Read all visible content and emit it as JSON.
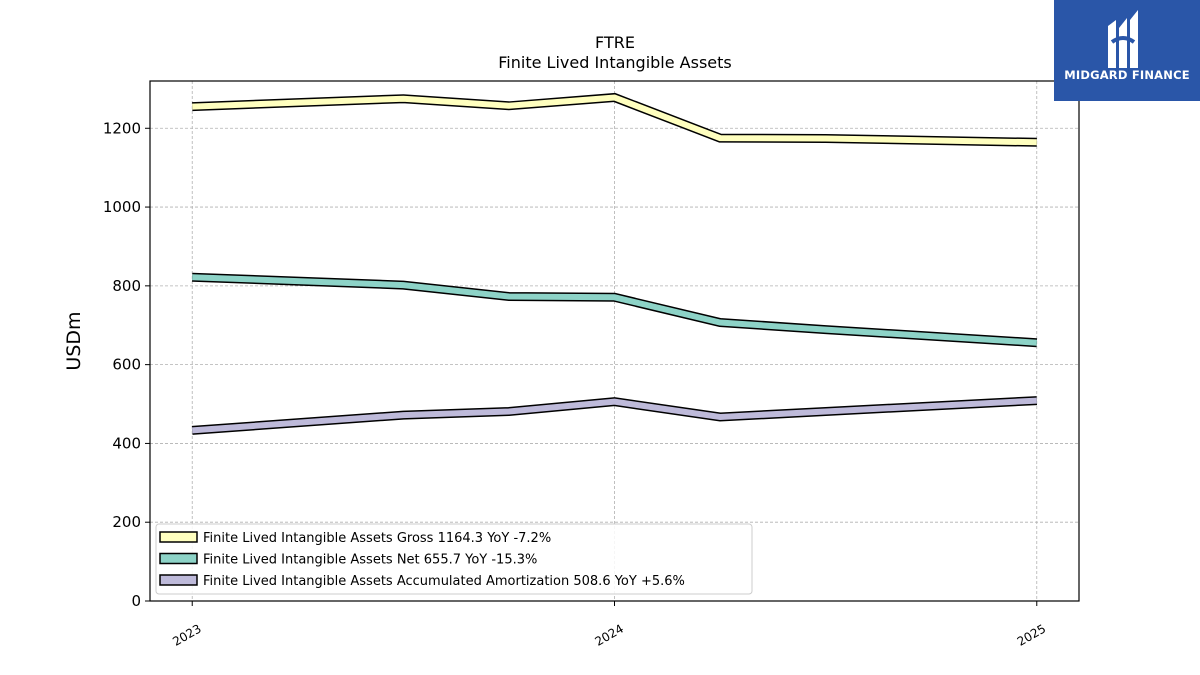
{
  "chart_data": {
    "type": "line",
    "title": "FTRE",
    "subtitle": "Finite Lived Intangible Assets",
    "ylabel": "USDm",
    "xlabel": "",
    "ylim": [
      0,
      1320
    ],
    "xlim": [
      2022.9,
      2025.1
    ],
    "yticks": [
      0,
      200,
      400,
      600,
      800,
      1000,
      1200
    ],
    "xticks": [
      {
        "value": 2023,
        "label": "2023"
      },
      {
        "value": 2024,
        "label": "2024"
      },
      {
        "value": 2025,
        "label": "2025"
      }
    ],
    "grid": true,
    "legend_position": "lower-left",
    "x": [
      2023.0,
      2023.5,
      2023.75,
      2024.0,
      2024.25,
      2024.5,
      2025.0
    ],
    "series": [
      {
        "name": "Finite Lived Intangible Assets Gross",
        "legend": "Finite Lived Intangible Assets Gross  1164.3 YoY -7.2%",
        "color": "#ffffbf",
        "values": [
          1255,
          1275,
          1257,
          1278,
          1175,
          1174,
          1164.3
        ]
      },
      {
        "name": "Finite Lived Intangible Assets Net",
        "legend": "Finite Lived Intangible Assets Net  655.7 YoY -15.3%",
        "color": "#8dd3c7",
        "values": [
          822,
          802,
          773,
          771,
          707,
          689,
          655.7
        ]
      },
      {
        "name": "Finite Lived Intangible Assets Accumulated Amortization",
        "legend": "Finite Lived Intangible Assets Accumulated Amortization  508.6 YoY +5.6%",
        "color": "#bebada",
        "values": [
          433,
          472,
          481,
          506,
          467,
          481,
          508.6
        ]
      }
    ]
  },
  "logo": {
    "text": "MIDGARD FINANCE",
    "color": "#2a56a8"
  }
}
